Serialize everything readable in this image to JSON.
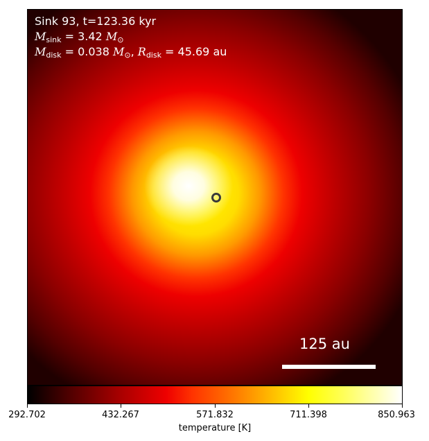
{
  "image": {
    "colormap": "hot",
    "colors": {
      "background": "#000000",
      "core": "#ffffff",
      "mid": "#ffff00",
      "outer": "#ee0000"
    }
  },
  "annotations": {
    "title": "Sink 93, t=123.36 kyr",
    "msink_symbol": "M",
    "msink_sub": "sink",
    "msink_eq": " = 3.42 ",
    "msink_unit": "M",
    "msink_unit_sub": "⊙",
    "mdisk_symbol": "M",
    "mdisk_sub": "disk",
    "mdisk_eq": " = 0.038 ",
    "mdisk_unit": "M",
    "mdisk_unit_sub": "⊙",
    "mdisk_sep": ",  ",
    "rdisk_symbol": "R",
    "rdisk_sub": "disk",
    "rdisk_eq": " = 45.69 au"
  },
  "scalebar": {
    "label": "125 au"
  },
  "colorbar": {
    "label": "temperature [K]",
    "ticks": [
      "292.702",
      "432.267",
      "571.832",
      "711.398",
      "850.963"
    ]
  }
}
